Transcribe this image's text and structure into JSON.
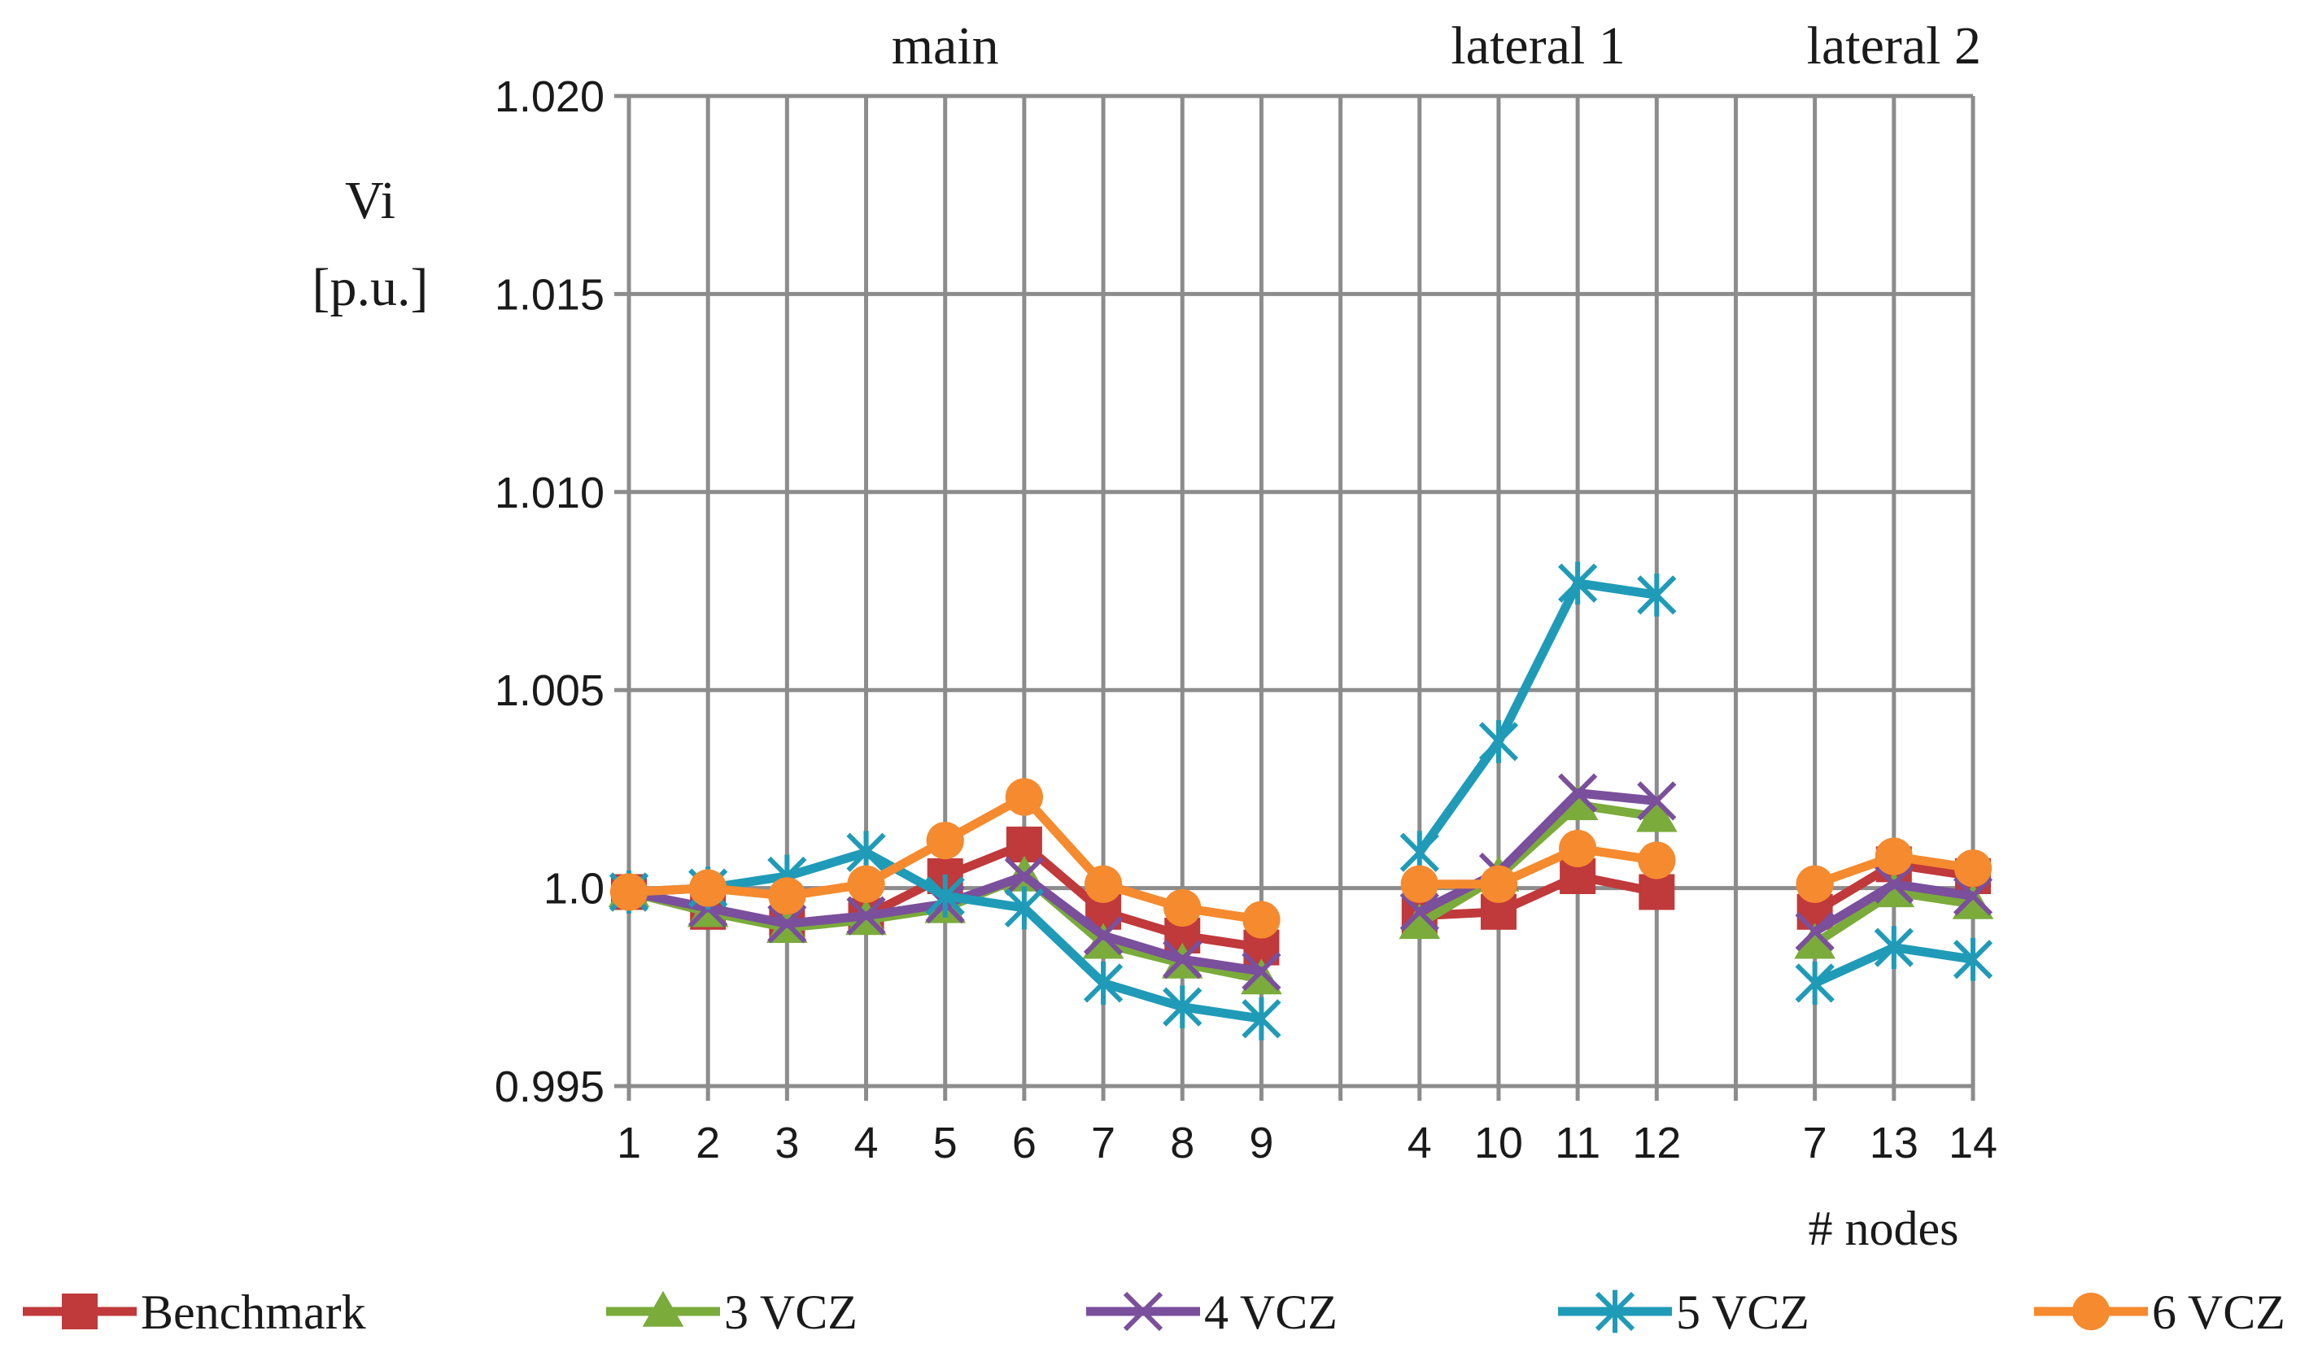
{
  "chart_data": {
    "type": "line",
    "ylabel": "Vi",
    "yunit": "[p.u.]",
    "xlabel": "# nodes",
    "ylim": [
      0.995,
      1.02
    ],
    "yticks": [
      {
        "value": 1.02,
        "label": "1.020"
      },
      {
        "value": 1.015,
        "label": "1.015"
      },
      {
        "value": 1.01,
        "label": "1.010"
      },
      {
        "value": 1.005,
        "label": "1.005"
      },
      {
        "value": 1.0,
        "label": "1.0"
      },
      {
        "value": 0.995,
        "label": "0.995"
      }
    ],
    "categories": [
      "1",
      "2",
      "3",
      "4",
      "5",
      "6",
      "7",
      "8",
      "9",
      "",
      "4",
      "10",
      "11",
      "12",
      "",
      "7",
      "13",
      "14"
    ],
    "groups": [
      {
        "label": "main",
        "start": 0,
        "end": 8
      },
      {
        "label": "lateral 1",
        "start": 10,
        "end": 13
      },
      {
        "label": "lateral 2",
        "start": 15,
        "end": 17
      }
    ],
    "legend_position": "bottom",
    "series": [
      {
        "name": "Benchmark",
        "color": "#c0393b",
        "marker": "square",
        "values": [
          0.9999,
          0.9994,
          0.9991,
          0.9993,
          1.0003,
          1.0011,
          0.9994,
          0.9988,
          0.9985,
          null,
          0.9993,
          0.9994,
          1.0003,
          0.9999,
          null,
          0.9994,
          1.0006,
          1.0003
        ]
      },
      {
        "name": "3 VCZ",
        "color": "#7aab3b",
        "marker": "triangle",
        "values": [
          0.9999,
          0.9994,
          0.999,
          0.9992,
          0.9995,
          1.0003,
          0.9986,
          0.9981,
          0.9977,
          null,
          0.9991,
          1.0003,
          1.0021,
          1.0018,
          null,
          0.9986,
          0.9999,
          0.9996
        ]
      },
      {
        "name": "4 VCZ",
        "color": "#7a4f9c",
        "marker": "x",
        "values": [
          0.9999,
          0.9995,
          0.9991,
          0.9993,
          0.9996,
          1.0003,
          0.9988,
          0.9982,
          0.9979,
          null,
          0.9994,
          1.0004,
          1.0024,
          1.0022,
          null,
          0.9989,
          1.0001,
          0.9998
        ]
      },
      {
        "name": "5 VCZ",
        "color": "#1f9bb8",
        "marker": "star",
        "values": [
          0.9999,
          1.0,
          1.0003,
          1.0009,
          0.9998,
          0.9995,
          0.9976,
          0.997,
          0.9967,
          null,
          1.0009,
          1.0037,
          1.0077,
          1.0074,
          null,
          0.9976,
          0.9985,
          0.9982
        ]
      },
      {
        "name": "6 VCZ",
        "color": "#f58a2e",
        "marker": "circle",
        "values": [
          0.9999,
          1.0,
          0.9998,
          1.0001,
          1.0012,
          1.0023,
          1.0001,
          0.9995,
          0.9992,
          null,
          1.0001,
          1.0001,
          1.001,
          1.0007,
          null,
          1.0001,
          1.0008,
          1.0005
        ]
      }
    ]
  }
}
